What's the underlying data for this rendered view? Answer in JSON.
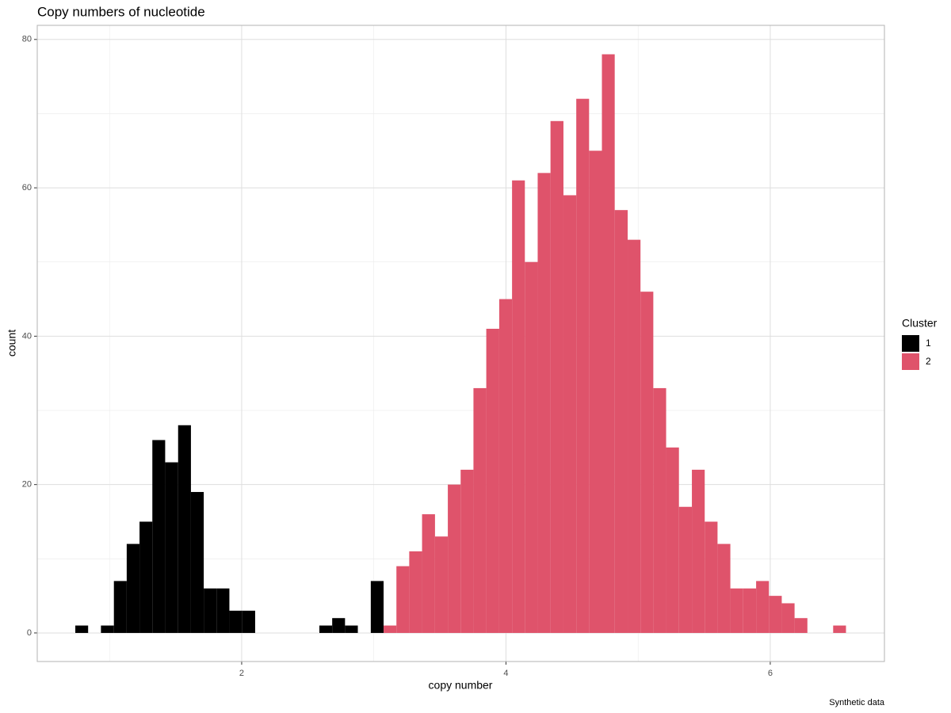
{
  "chart_data": {
    "type": "histogram",
    "title": "Copy numbers of nucleotide",
    "x_label": "copy number",
    "y_label": "count",
    "caption": "Synthetic data",
    "legend_title": "Cluster",
    "legend_position": "right",
    "grid": true,
    "stacked": true,
    "bins": [
      0.741,
      0.838,
      0.935,
      1.033,
      1.13,
      1.227,
      1.324,
      1.421,
      1.519,
      1.616,
      1.713,
      1.81,
      1.907,
      2.005,
      2.102,
      2.199,
      2.296,
      2.393,
      2.491,
      2.588,
      2.685,
      2.782,
      2.879,
      2.977,
      3.074,
      3.171,
      3.268,
      3.365,
      3.463,
      3.56,
      3.657,
      3.754,
      3.851,
      3.949,
      4.046,
      4.143,
      4.24,
      4.337,
      4.435,
      4.532,
      4.629,
      4.726,
      4.823,
      4.921,
      5.018,
      5.115,
      5.212,
      5.309,
      5.407,
      5.504,
      5.601,
      5.698,
      5.795,
      5.893,
      5.99,
      6.087,
      6.184,
      6.281,
      6.379,
      6.476,
      6.573
    ],
    "series": [
      {
        "name": "1",
        "color": "#000000",
        "values": [
          1,
          0,
          1,
          7,
          12,
          15,
          26,
          23,
          28,
          19,
          6,
          6,
          3,
          3,
          0,
          0,
          0,
          0,
          0,
          1,
          2,
          1,
          0,
          7,
          0,
          0,
          0,
          0,
          0,
          0,
          0,
          0,
          0,
          0,
          0,
          0,
          0,
          0,
          0,
          0,
          0,
          0,
          0,
          0,
          0,
          0,
          0,
          0,
          0,
          0,
          0,
          0,
          0,
          0,
          0,
          0,
          0,
          0,
          0,
          0
        ]
      },
      {
        "name": "2",
        "color": "#DF536B",
        "values": [
          0,
          0,
          0,
          0,
          0,
          0,
          0,
          0,
          0,
          0,
          0,
          0,
          0,
          0,
          0,
          0,
          0,
          0,
          0,
          0,
          0,
          0,
          0,
          0,
          1,
          9,
          11,
          16,
          13,
          20,
          22,
          33,
          41,
          45,
          61,
          50,
          62,
          69,
          59,
          72,
          65,
          78,
          57,
          53,
          46,
          33,
          25,
          17,
          22,
          15,
          12,
          6,
          6,
          7,
          5,
          4,
          2,
          0,
          0,
          1
        ]
      }
    ],
    "xlim": [
      0.453,
      6.864
    ],
    "xticks": [
      2,
      4,
      6
    ],
    "ylim": [
      -3.85,
      81.9
    ],
    "yticks": [
      0,
      20,
      40,
      60,
      80
    ]
  }
}
